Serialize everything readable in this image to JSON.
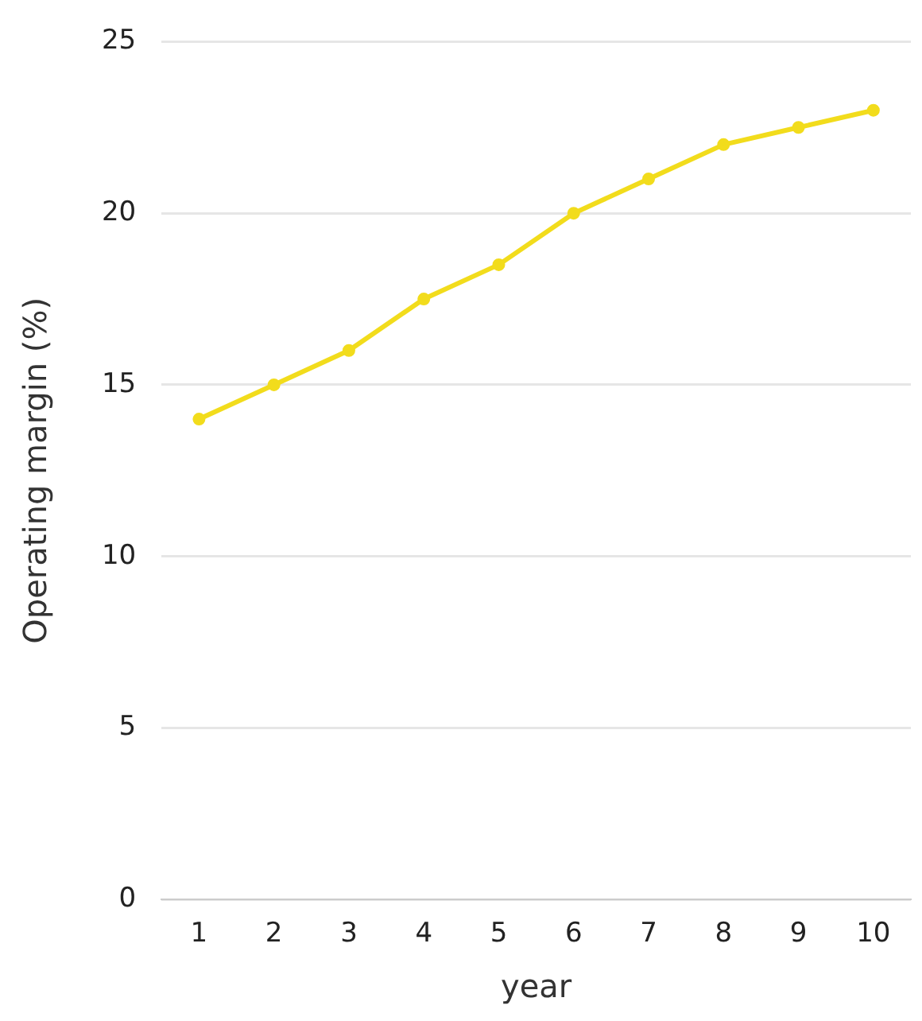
{
  "chart_data": {
    "type": "line",
    "xlabel": "year",
    "ylabel": "Operating margin (%)",
    "categories": [
      "1",
      "2",
      "3",
      "4",
      "5",
      "6",
      "7",
      "8",
      "9",
      "10"
    ],
    "series": [
      {
        "color": "#f2dc1c",
        "values": [
          14,
          15,
          16,
          17.5,
          18.5,
          20,
          21,
          22,
          22.5,
          23
        ]
      }
    ],
    "ylim": [
      0,
      25
    ],
    "yticks": [
      0,
      5,
      10,
      15,
      20,
      25
    ],
    "grid": "y",
    "legend": false,
    "marker": "circle",
    "line_style": "solid"
  }
}
